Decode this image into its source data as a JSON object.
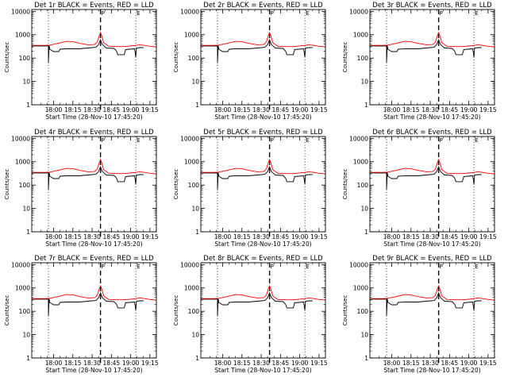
{
  "chart_data": {
    "type": "line",
    "time_range_min": [
      -2,
      95
    ],
    "xticks": [
      {
        "t": 15,
        "label": "18:00"
      },
      {
        "t": 30,
        "label": "18:15"
      },
      {
        "t": 45,
        "label": "18:30"
      },
      {
        "t": 60,
        "label": "18:45"
      },
      {
        "t": 75,
        "label": "19:00"
      },
      {
        "t": 90,
        "label": "19:15"
      }
    ],
    "xlabel": "Start Time (28-Nov-10 17:45:20)",
    "ylabel": "Counts/sec",
    "yscale": "log",
    "ylim": [
      1,
      12000
    ],
    "yticks": [
      {
        "v": 1,
        "label": "1"
      },
      {
        "v": 10,
        "label": "10"
      },
      {
        "v": 100,
        "label": "100"
      },
      {
        "v": 1000,
        "label": "1000"
      },
      {
        "v": 10000,
        "label": "10000"
      }
    ],
    "markers": [
      {
        "t": 11,
        "style": "dotted",
        "label": ""
      },
      {
        "t": 51.5,
        "style": "dashed",
        "label": "P"
      },
      {
        "t": 79,
        "style": "dotted",
        "label": "E"
      }
    ],
    "series_template": {
      "events_black": {
        "name": "Events",
        "color": "#000000",
        "points": [
          [
            -2,
            330
          ],
          [
            11,
            330
          ],
          [
            11,
            65
          ],
          [
            11.5,
            340
          ],
          [
            12,
            240
          ],
          [
            15,
            190
          ],
          [
            19,
            190
          ],
          [
            20,
            240
          ],
          [
            25,
            250
          ],
          [
            35,
            250
          ],
          [
            45,
            280
          ],
          [
            48,
            290
          ],
          [
            50,
            380
          ],
          [
            51.5,
            620
          ],
          [
            53,
            380
          ],
          [
            56,
            270
          ],
          [
            62,
            260
          ],
          [
            64,
            200
          ],
          [
            65,
            140
          ],
          [
            70,
            140
          ],
          [
            71,
            230
          ],
          [
            74,
            240
          ],
          [
            78,
            250
          ],
          [
            79,
            110
          ],
          [
            79.5,
            270
          ],
          [
            82,
            280
          ],
          [
            85,
            280
          ]
        ]
      },
      "lld_red": {
        "name": "LLD",
        "color": "#ff0000",
        "points": [
          [
            -2,
            350
          ],
          [
            8,
            350
          ],
          [
            12,
            360
          ],
          [
            18,
            420
          ],
          [
            25,
            520
          ],
          [
            30,
            500
          ],
          [
            36,
            420
          ],
          [
            42,
            370
          ],
          [
            47,
            380
          ],
          [
            49,
            480
          ],
          [
            50.5,
            900
          ],
          [
            51.5,
            1250
          ],
          [
            52.5,
            900
          ],
          [
            54,
            450
          ],
          [
            58,
            320
          ],
          [
            64,
            310
          ],
          [
            70,
            310
          ],
          [
            75,
            330
          ],
          [
            79,
            350
          ],
          [
            82,
            370
          ],
          [
            86,
            350
          ],
          [
            90,
            320
          ],
          [
            95,
            300
          ]
        ]
      }
    },
    "panels": [
      {
        "title": "Det 1r BLACK = Events, RED = LLD"
      },
      {
        "title": "Det 2r BLACK = Events, RED = LLD"
      },
      {
        "title": "Det 3r BLACK = Events, RED = LLD"
      },
      {
        "title": "Det 4r BLACK = Events, RED = LLD"
      },
      {
        "title": "Det 5r BLACK = Events, RED = LLD"
      },
      {
        "title": "Det 6r BLACK = Events, RED = LLD"
      },
      {
        "title": "Det 7r BLACK = Events, RED = LLD"
      },
      {
        "title": "Det 8r BLACK = Events, RED = LLD"
      },
      {
        "title": "Det 9r BLACK = Events, RED = LLD"
      }
    ]
  }
}
